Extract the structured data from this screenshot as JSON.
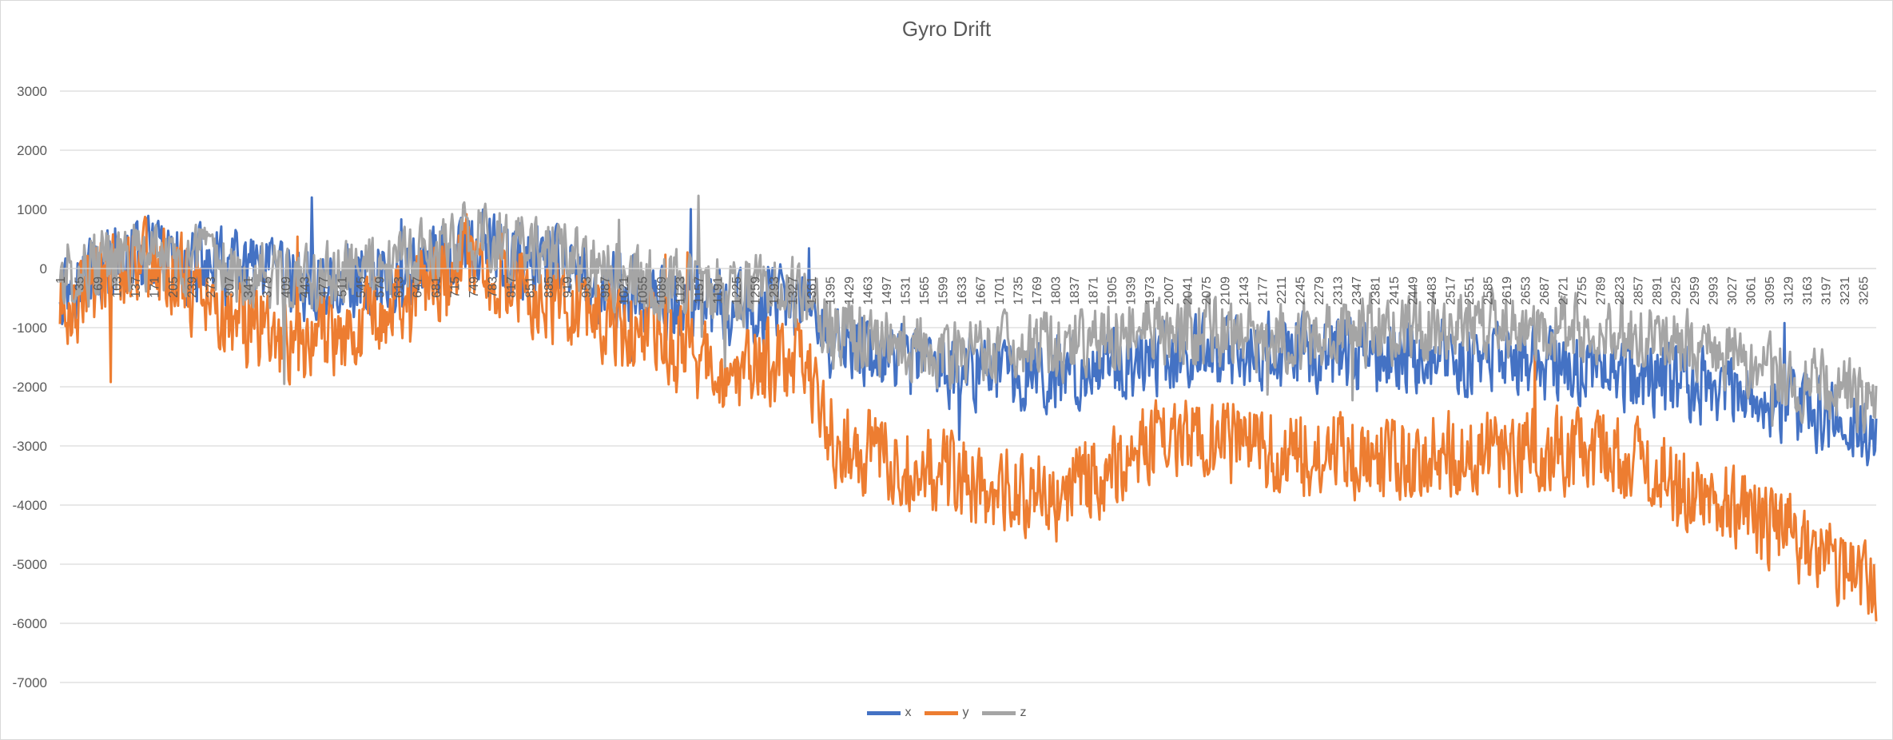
{
  "chart_data": {
    "type": "line",
    "title": "Gyro Drift",
    "xlabel": "",
    "ylabel": "",
    "ylim": [
      -7000,
      3000
    ],
    "yticks": [
      3000,
      2000,
      1000,
      0,
      -1000,
      -2000,
      -3000,
      -4000,
      -5000,
      -6000,
      -7000
    ],
    "x_range": [
      1,
      3289
    ],
    "xtick_labels": [
      "1",
      "35",
      "69",
      "103",
      "137",
      "171",
      "205",
      "239",
      "273",
      "307",
      "341",
      "375",
      "409",
      "443",
      "477",
      "511",
      "545",
      "579",
      "613",
      "647",
      "681",
      "715",
      "749",
      "783",
      "817",
      "851",
      "885",
      "919",
      "953",
      "987",
      "1021",
      "1055",
      "1089",
      "1123",
      "1157",
      "1191",
      "1225",
      "1259",
      "1293",
      "1327",
      "1361",
      "1395",
      "1429",
      "1463",
      "1497",
      "1531",
      "1565",
      "1599",
      "1633",
      "1667",
      "1701",
      "1735",
      "1769",
      "1803",
      "1837",
      "1871",
      "1905",
      "1939",
      "1973",
      "2007",
      "2041",
      "2075",
      "2109",
      "2143",
      "2177",
      "2211",
      "2245",
      "2279",
      "2313",
      "2347",
      "2381",
      "2415",
      "2449",
      "2483",
      "2517",
      "2551",
      "2585",
      "2619",
      "2653",
      "2687",
      "2721",
      "2755",
      "2789",
      "2823",
      "2857",
      "2891",
      "2925",
      "2959",
      "2993",
      "3027",
      "3061",
      "3095",
      "3129",
      "3163",
      "3197",
      "3231",
      "3265"
    ],
    "grid": true,
    "legend_position": "bottom",
    "series": [
      {
        "name": "x",
        "color": "#4472c4",
        "trend_x": [
          1,
          150,
          300,
          450,
          600,
          750,
          900,
          1050,
          1200,
          1350,
          1400,
          1600,
          1800,
          2000,
          2200,
          2400,
          2600,
          2800,
          3000,
          3150,
          3289
        ],
        "trend_y": [
          -300,
          200,
          0,
          -300,
          -100,
          300,
          0,
          -500,
          -700,
          -600,
          -1300,
          -1700,
          -1800,
          -1500,
          -1400,
          -1500,
          -1500,
          -1700,
          -2000,
          -2300,
          -2800
        ],
        "noise_amplitude": 700
      },
      {
        "name": "y",
        "color": "#ed7d31",
        "trend_x": [
          1,
          150,
          300,
          450,
          600,
          750,
          900,
          1050,
          1200,
          1350,
          1400,
          1600,
          1800,
          2000,
          2200,
          2400,
          2600,
          2800,
          3000,
          3150,
          3289
        ],
        "trend_y": [
          -700,
          300,
          -800,
          -1300,
          -600,
          200,
          -600,
          -1100,
          -1700,
          -1600,
          -2900,
          -3500,
          -3900,
          -2800,
          -3100,
          -3200,
          -3100,
          -3100,
          -3900,
          -4600,
          -5500
        ],
        "noise_amplitude": 800
      },
      {
        "name": "z",
        "color": "#a5a5a5",
        "trend_x": [
          1,
          150,
          300,
          450,
          600,
          750,
          900,
          1050,
          1200,
          1350,
          1400,
          1600,
          1800,
          2000,
          2200,
          2400,
          2600,
          2800,
          3000,
          3150,
          3289
        ],
        "trend_y": [
          -100,
          200,
          0,
          -200,
          0,
          600,
          200,
          -200,
          -400,
          -300,
          -1100,
          -1400,
          -1300,
          -1000,
          -1200,
          -1000,
          -900,
          -1100,
          -1400,
          -1900,
          -2300
        ],
        "noise_amplitude": 650
      }
    ]
  }
}
